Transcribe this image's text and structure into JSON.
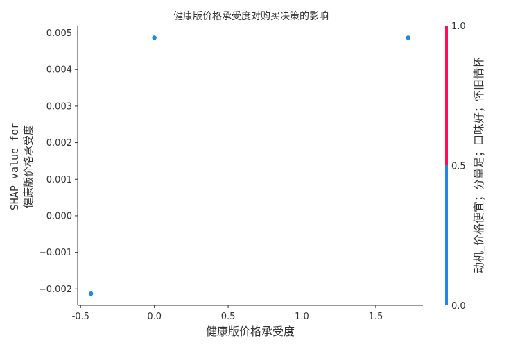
{
  "chart_data": {
    "type": "scatter",
    "title": "健康版价格承受度对购买决策的影响",
    "xlabel": "健康版价格承受度",
    "ylabel_line1": "SHAP value for",
    "ylabel_line2": "健康版价格承受度",
    "xlim": [
      -0.52,
      1.82
    ],
    "ylim": [
      -0.00245,
      0.0052
    ],
    "x_ticks": [
      -0.5,
      0.0,
      0.5,
      1.0,
      1.5
    ],
    "x_tick_labels": [
      "-0.5",
      "0.0",
      "0.5",
      "1.0",
      "1.5"
    ],
    "y_ticks": [
      -0.002,
      -0.001,
      0.0,
      0.001,
      0.002,
      0.003,
      0.004,
      0.005
    ],
    "y_tick_labels": [
      "−0.002",
      "−0.001",
      "0.000",
      "0.001",
      "0.002",
      "0.003",
      "0.004",
      "0.005"
    ],
    "points": [
      {
        "x": -0.43,
        "y": -0.00213,
        "color_value": 0.0
      },
      {
        "x": 0.0,
        "y": 0.00487,
        "color_value": 0.0
      },
      {
        "x": 1.72,
        "y": 0.00487,
        "color_value": 0.0
      }
    ],
    "colorbar": {
      "label": "动机_价格便宜；分量足；口味好；怀旧情怀",
      "ticks": [
        0.0,
        0.5,
        1.0
      ],
      "tick_labels": [
        "0.0",
        "0.5",
        "1.0"
      ],
      "low_color": "#1e88e5",
      "high_color": "#ff0d57"
    },
    "grid": false
  }
}
